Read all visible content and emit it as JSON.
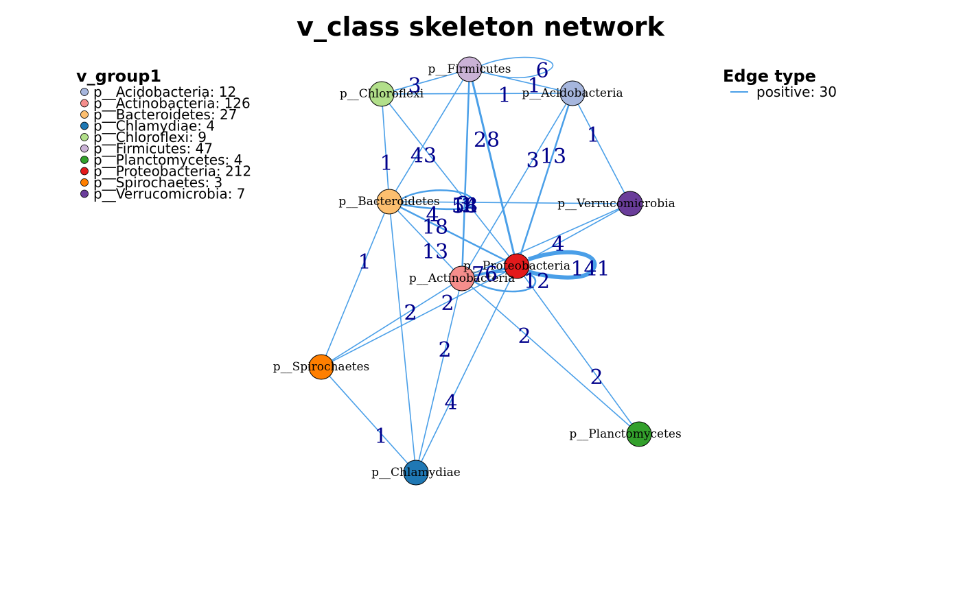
{
  "title": "v_class skeleton network",
  "legend": {
    "nodes_title": "v_group1",
    "nodes": [
      {
        "label": "p__Acidobacteria: 12",
        "color": "#A6B6DD"
      },
      {
        "label": "p__Actinobacteria: 126",
        "color": "#F58E8C"
      },
      {
        "label": "p__Bacteroidetes: 27",
        "color": "#FDBF6F"
      },
      {
        "label": "p__Chlamydiae: 4",
        "color": "#1F78B4"
      },
      {
        "label": "p__Chloroflexi: 9",
        "color": "#B2DF8A"
      },
      {
        "label": "p__Firmicutes: 47",
        "color": "#CAB2D6"
      },
      {
        "label": "p__Planctomycetes: 4",
        "color": "#33A02C"
      },
      {
        "label": "p__Proteobacteria: 212",
        "color": "#E31A1C"
      },
      {
        "label": "p__Spirochaetes: 3",
        "color": "#FF7F00"
      },
      {
        "label": "p__Verrucomicrobia: 7",
        "color": "#6A3D9A"
      }
    ],
    "edges_title": "Edge type",
    "edges": [
      {
        "label": "positive: 30",
        "color": "#4A9FE8"
      }
    ]
  },
  "nodes": [
    {
      "id": "Firmicutes",
      "label": "p__Firmicutes",
      "color": "#CAB2D6"
    },
    {
      "id": "Chloroflexi",
      "label": "p__Chloroflexi",
      "color": "#B2DF8A"
    },
    {
      "id": "Acidobacteria",
      "label": "p__Acidobacteria",
      "color": "#A6B6DD"
    },
    {
      "id": "Bacteroidetes",
      "label": "p__Bacteroidetes",
      "color": "#FDBF6F"
    },
    {
      "id": "Verrucomicrobia",
      "label": "p__Verrucomicrobia",
      "color": "#6A3D9A"
    },
    {
      "id": "Proteobacteria",
      "label": "p__Proteobacteria",
      "color": "#E31A1C"
    },
    {
      "id": "Actinobacteria",
      "label": "p__Actinobacteria",
      "color": "#F58E8C"
    },
    {
      "id": "Spirochaetes",
      "label": "p__Spirochaetes",
      "color": "#FF7F00"
    },
    {
      "id": "Planctomycetes",
      "label": "p__Planctomycetes",
      "color": "#33A02C"
    },
    {
      "id": "Chlamydiae",
      "label": "p__Chlamydiae",
      "color": "#1F78B4"
    }
  ],
  "edges": [
    {
      "from": "Firmicutes",
      "to": "Firmicutes",
      "weight": "6"
    },
    {
      "from": "Firmicutes",
      "to": "Chloroflexi",
      "weight": "3"
    },
    {
      "from": "Firmicutes",
      "to": "Acidobacteria",
      "weight": "1"
    },
    {
      "from": "Chloroflexi",
      "to": "Acidobacteria",
      "weight": "1"
    },
    {
      "from": "Firmicutes",
      "to": "Bacteroidetes",
      "weight": "43"
    },
    {
      "from": "Firmicutes",
      "to": "Proteobacteria",
      "weight": "28"
    },
    {
      "from": "Firmicutes",
      "to": "Actinobacteria",
      "weight": "18"
    },
    {
      "from": "Chloroflexi",
      "to": "Bacteroidetes",
      "weight": "1"
    },
    {
      "from": "Chloroflexi",
      "to": "Proteobacteria",
      "weight": "3"
    },
    {
      "from": "Acidobacteria",
      "to": "Verrucomicrobia",
      "weight": "1"
    },
    {
      "from": "Acidobacteria",
      "to": "Proteobacteria",
      "weight": "13"
    },
    {
      "from": "Acidobacteria",
      "to": "Actinobacteria",
      "weight": "3"
    },
    {
      "from": "Bacteroidetes",
      "to": "Bacteroidetes",
      "weight": "54"
    },
    {
      "from": "Bacteroidetes",
      "to": "Verrucomicrobia",
      "weight": "1"
    },
    {
      "from": "Bacteroidetes",
      "to": "Proteobacteria",
      "weight": "18"
    },
    {
      "from": "Bacteroidetes",
      "to": "Actinobacteria",
      "weight": "13"
    },
    {
      "from": "Bacteroidetes",
      "to": "Spirochaetes",
      "weight": "1"
    },
    {
      "from": "Bacteroidetes",
      "to": "Chlamydiae",
      "weight": "4"
    },
    {
      "from": "Verrucomicrobia",
      "to": "Proteobacteria",
      "weight": "4"
    },
    {
      "from": "Verrucomicrobia",
      "to": "Actinobacteria",
      "weight": "2"
    },
    {
      "from": "Proteobacteria",
      "to": "Proteobacteria",
      "weight": "141"
    },
    {
      "from": "Proteobacteria",
      "to": "Actinobacteria",
      "weight": "76"
    },
    {
      "from": "Actinobacteria",
      "to": "Actinobacteria",
      "weight": "12"
    },
    {
      "from": "Proteobacteria",
      "to": "Spirochaetes",
      "weight": "2"
    },
    {
      "from": "Proteobacteria",
      "to": "Chlamydiae",
      "weight": "4"
    },
    {
      "from": "Proteobacteria",
      "to": "Planctomycetes",
      "weight": "2"
    },
    {
      "from": "Actinobacteria",
      "to": "Spirochaetes",
      "weight": "2"
    },
    {
      "from": "Actinobacteria",
      "to": "Chlamydiae",
      "weight": "2"
    },
    {
      "from": "Actinobacteria",
      "to": "Planctomycetes",
      "weight": "2"
    },
    {
      "from": "Spirochaetes",
      "to": "Chlamydiae",
      "weight": "1"
    }
  ],
  "edge_color": "#4A9FE8",
  "edge_label_color": "#00008B"
}
